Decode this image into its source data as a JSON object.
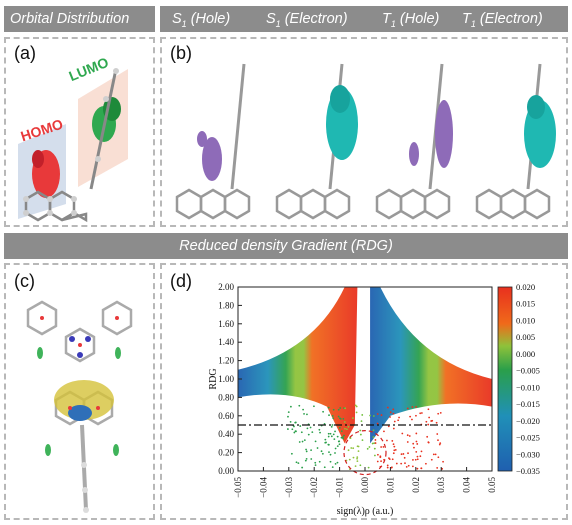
{
  "top_panel": {
    "left_header": "Orbital Distribution",
    "right_headers": [
      {
        "main": "S",
        "sub": "1",
        "rest": " (Hole)"
      },
      {
        "main": "S",
        "sub": "1",
        "rest": " (Electron)"
      },
      {
        "main": "T",
        "sub": "1",
        "rest": " (Hole)"
      },
      {
        "main": "T",
        "sub": "1",
        "rest": " (Electron)"
      }
    ],
    "label_a": "(a)",
    "label_b": "(b)",
    "homo_label": "HOMO",
    "lumo_label": "LUMO"
  },
  "mid_header": "Reduced density Gradient (RDG)",
  "label_c": "(c)",
  "label_d": "(d)",
  "colors": {
    "header_bg": "#8c8c8c",
    "homo": "#e8393a",
    "lumo": "#2fa84f",
    "hole": "#8e6bb8",
    "electron": "#1fb8b2"
  },
  "chart_data": {
    "type": "scatter",
    "xlabel": "sign(λ)ρ (a.u.)",
    "ylabel": "RDG",
    "xlim": [
      -0.05,
      0.05
    ],
    "ylim": [
      0.0,
      2.0
    ],
    "x_ticks": [
      "−0.05",
      "−0.04",
      "−0.03",
      "−0.02",
      "−0.01",
      "0.00",
      "0.01",
      "0.02",
      "0.03",
      "0.04",
      "0.05"
    ],
    "y_ticks": [
      "0.00",
      "0.20",
      "0.40",
      "0.60",
      "0.80",
      "1.00",
      "1.20",
      "1.40",
      "1.60",
      "1.80",
      "2.00"
    ],
    "reference_line_y": 0.5,
    "colorbar": {
      "ticks": [
        "0.020",
        "0.015",
        "0.010",
        "0.005",
        "0.000",
        "−0.005",
        "−0.010",
        "−0.015",
        "−0.020",
        "−0.025",
        "−0.030",
        "−0.035"
      ],
      "range": [
        -0.035,
        0.02
      ],
      "colors": [
        "#e8301e",
        "#f06a1a",
        "#8fc23a",
        "#2a9f4a",
        "#2090b8",
        "#1f5faf"
      ]
    }
  }
}
